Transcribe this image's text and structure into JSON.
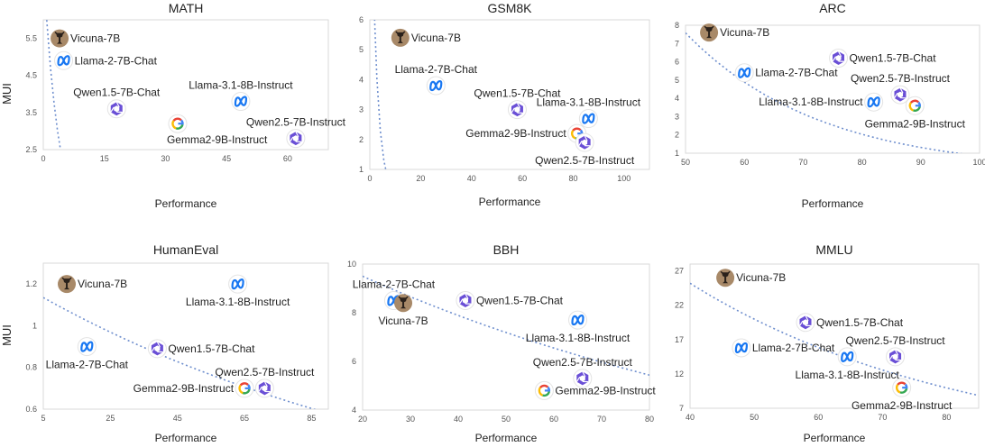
{
  "y_axis_label": "MUI",
  "chart_data": [
    {
      "type": "scatter",
      "title": "MATH",
      "xlabel": "Performance",
      "ylabel": "MUI",
      "xlim": [
        0,
        70
      ],
      "ylim": [
        2.5,
        6
      ],
      "xticks": [
        0,
        15,
        30,
        45,
        60
      ],
      "yticks": [
        2.5,
        3.5,
        4.5,
        5.5
      ],
      "trend": {
        "a": 7.45,
        "b": -0.26
      },
      "points": [
        {
          "name": "Vicuna-7B",
          "x": 4,
          "y": 5.5,
          "icon": "vicuna",
          "label_pos": "right"
        },
        {
          "name": "Llama-2-7B-Chat",
          "x": 5,
          "y": 4.9,
          "icon": "meta",
          "label_pos": "right"
        },
        {
          "name": "Qwen1.5-7B-Chat",
          "x": 18,
          "y": 3.6,
          "icon": "qwen",
          "label_pos": "above"
        },
        {
          "name": "Llama-3.1-8B-Instruct",
          "x": 48.5,
          "y": 3.8,
          "icon": "meta",
          "label_pos": "above"
        },
        {
          "name": "Gemma2-9B-Instruct",
          "x": 33,
          "y": 3.2,
          "icon": "google",
          "label_pos": "below-right"
        },
        {
          "name": "Qwen2.5-7B-Instruct",
          "x": 62,
          "y": 2.8,
          "icon": "qwen",
          "label_pos": "above"
        }
      ]
    },
    {
      "type": "scatter",
      "title": "GSM8K",
      "xlabel": "Performance",
      "ylabel": "",
      "xlim": [
        0,
        110
      ],
      "ylim": [
        1,
        6
      ],
      "xticks": [
        0,
        20,
        40,
        60,
        80,
        100
      ],
      "yticks": [
        1,
        2,
        3,
        4,
        5,
        6
      ],
      "trend": {
        "a": 12.5,
        "b": -0.41
      },
      "points": [
        {
          "name": "Vicuna-7B",
          "x": 12,
          "y": 5.4,
          "icon": "vicuna",
          "label_pos": "right"
        },
        {
          "name": "Llama-2-7B-Chat",
          "x": 26,
          "y": 3.8,
          "icon": "meta",
          "label_pos": "above"
        },
        {
          "name": "Qwen1.5-7B-Chat",
          "x": 58,
          "y": 3.0,
          "icon": "qwen",
          "label_pos": "above"
        },
        {
          "name": "Llama-3.1-8B-Instruct",
          "x": 86,
          "y": 2.7,
          "icon": "meta",
          "label_pos": "above"
        },
        {
          "name": "Gemma2-9B-Instruct",
          "x": 81.5,
          "y": 2.2,
          "icon": "google",
          "label_pos": "left"
        },
        {
          "name": "Qwen2.5-7B-Instruct",
          "x": 84.5,
          "y": 1.9,
          "icon": "qwen",
          "label_pos": "below"
        }
      ]
    },
    {
      "type": "scatter",
      "title": "ARC",
      "xlabel": "Performance",
      "ylabel": "",
      "xlim": [
        50,
        100
      ],
      "ylim": [
        1,
        8
      ],
      "xticks": [
        50,
        60,
        70,
        80,
        90,
        100
      ],
      "yticks": [
        1,
        2,
        3,
        4,
        5,
        6,
        7,
        8
      ],
      "trend": {
        "a": 7.58,
        "b": -0.0438,
        "offset": 50
      },
      "points": [
        {
          "name": "Vicuna-7B",
          "x": 54,
          "y": 7.6,
          "icon": "vicuna",
          "label_pos": "right"
        },
        {
          "name": "Qwen1.5-7B-Chat",
          "x": 76,
          "y": 6.2,
          "icon": "qwen",
          "label_pos": "right"
        },
        {
          "name": "Llama-2-7B-Chat",
          "x": 60,
          "y": 5.4,
          "icon": "meta",
          "label_pos": "right"
        },
        {
          "name": "Qwen2.5-7B-Instruct",
          "x": 86.5,
          "y": 4.2,
          "icon": "qwen",
          "label_pos": "above"
        },
        {
          "name": "Llama-3.1-8B-Instruct",
          "x": 82,
          "y": 3.8,
          "icon": "meta",
          "label_pos": "left"
        },
        {
          "name": "Gemma2-9B-Instruct",
          "x": 89,
          "y": 3.6,
          "icon": "google",
          "label_pos": "below"
        }
      ]
    },
    {
      "type": "scatter",
      "title": "HumanEval",
      "xlabel": "Performance",
      "ylabel": "MUI",
      "xlim": [
        5,
        90
      ],
      "ylim": [
        0.6,
        1.3
      ],
      "xticks": [
        5,
        25,
        45,
        65,
        85
      ],
      "yticks": [
        0.6,
        0.8,
        1,
        1.2
      ],
      "trend": {
        "a": 1.135,
        "b": -0.0079,
        "offset": 5
      },
      "points": [
        {
          "name": "Vicuna-7B",
          "x": 12,
          "y": 1.2,
          "icon": "vicuna",
          "label_pos": "right"
        },
        {
          "name": "Llama-3.1-8B-Instruct",
          "x": 63,
          "y": 1.2,
          "icon": "meta",
          "label_pos": "below"
        },
        {
          "name": "Llama-2-7B-Chat",
          "x": 18,
          "y": 0.9,
          "icon": "meta",
          "label_pos": "below"
        },
        {
          "name": "Qwen1.5-7B-Chat",
          "x": 39,
          "y": 0.89,
          "icon": "qwen",
          "label_pos": "right"
        },
        {
          "name": "Qwen2.5-7B-Instruct",
          "x": 71,
          "y": 0.7,
          "icon": "qwen",
          "label_pos": "above"
        },
        {
          "name": "Gemma2-9B-Instruct",
          "x": 65,
          "y": 0.7,
          "icon": "google",
          "label_pos": "left"
        }
      ]
    },
    {
      "type": "scatter",
      "title": "BBH",
      "xlabel": "Performance",
      "ylabel": "",
      "xlim": [
        20,
        80
      ],
      "ylim": [
        4,
        10
      ],
      "xticks": [
        20,
        30,
        40,
        50,
        60,
        70,
        80
      ],
      "yticks": [
        4,
        6,
        8,
        10
      ],
      "trend": {
        "a": 9.5,
        "b": -0.0093,
        "offset": 20
      },
      "points": [
        {
          "name": "Llama-2-7B-Chat",
          "x": 26.5,
          "y": 8.5,
          "icon": "meta",
          "label_pos": "above"
        },
        {
          "name": "Vicuna-7B",
          "x": 28.5,
          "y": 8.4,
          "icon": "vicuna",
          "label_pos": "below"
        },
        {
          "name": "Qwen1.5-7B-Chat",
          "x": 41.5,
          "y": 8.5,
          "icon": "qwen",
          "label_pos": "right"
        },
        {
          "name": "Llama-3.1-8B-Instruct",
          "x": 65,
          "y": 7.7,
          "icon": "meta",
          "label_pos": "below"
        },
        {
          "name": "Qwen2.5-7B-Instruct",
          "x": 66,
          "y": 5.3,
          "icon": "qwen",
          "label_pos": "above"
        },
        {
          "name": "Gemma2-9B-Instruct",
          "x": 58,
          "y": 4.8,
          "icon": "google",
          "label_pos": "right"
        }
      ]
    },
    {
      "type": "scatter",
      "title": "MMLU",
      "xlabel": "Performance",
      "ylabel": "",
      "xlim": [
        40,
        85
      ],
      "ylim": [
        7,
        28
      ],
      "xticks": [
        40,
        50,
        60,
        70,
        80
      ],
      "yticks": [
        7,
        12,
        17,
        22,
        27
      ],
      "trend": {
        "a": 25.2,
        "b": -0.0232,
        "offset": 40
      },
      "points": [
        {
          "name": "Vicuna-7B",
          "x": 45.5,
          "y": 26,
          "icon": "vicuna",
          "label_pos": "right"
        },
        {
          "name": "Qwen1.5-7B-Chat",
          "x": 58,
          "y": 19.5,
          "icon": "qwen",
          "label_pos": "right"
        },
        {
          "name": "Llama-2-7B-Chat",
          "x": 48,
          "y": 15.8,
          "icon": "meta",
          "label_pos": "right"
        },
        {
          "name": "Qwen2.5-7B-Instruct",
          "x": 72,
          "y": 14.5,
          "icon": "qwen",
          "label_pos": "above"
        },
        {
          "name": "Llama-3.1-8B-Instruct",
          "x": 64.5,
          "y": 14.5,
          "icon": "meta",
          "label_pos": "below"
        },
        {
          "name": "Gemma2-9B-Instruct",
          "x": 73,
          "y": 10,
          "icon": "google",
          "label_pos": "below"
        }
      ]
    }
  ],
  "colors": {
    "trend": "#6f8fce",
    "meta": "#1877f2",
    "qwen": "#6a4fd6",
    "vicuna_bg": "#a88968",
    "vicuna_fg": "#2a211b",
    "google_blue": "#4285f4",
    "google_red": "#ea4335",
    "google_yellow": "#fbbc05",
    "google_green": "#34a853"
  }
}
